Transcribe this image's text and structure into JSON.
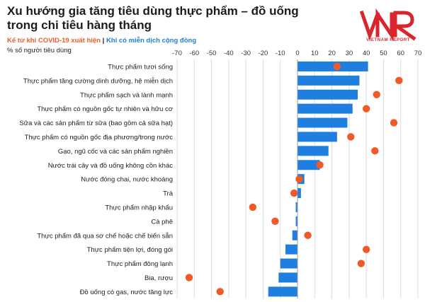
{
  "header": {
    "title": "Xu hướng gia tăng tiêu dùng thực phẩm – đồ uống trong chi tiêu hàng tháng",
    "subtitle_a": "Kể từ khi COVID-19 xuất hiện",
    "subtitle_sep": " | ",
    "subtitle_b": "Khi có miễn dịch cộng đồng",
    "unit_label": "% số người tiêu dùng",
    "logo_text": "VIETNAM REPORT"
  },
  "colors": {
    "bar": "#1f7fe0",
    "dot": "#f05a28",
    "grid": "#dcdcdc",
    "logo": "#d9262c"
  },
  "chart_data": {
    "type": "bar",
    "orientation": "horizontal",
    "xlim": [
      -70,
      70
    ],
    "xticks": [
      -70,
      -60,
      -50,
      -40,
      -30,
      -20,
      -10,
      0,
      10,
      20,
      30,
      40,
      50,
      60,
      70
    ],
    "grid": true,
    "categories": [
      "Thực phẩm tươi sống",
      "Thực phẩm tăng cường dinh dưỡng, hệ miễn dịch",
      "Thực phẩm sạch và lành mạnh",
      "Thực phẩm có nguồn gốc tự nhiên và hữu cơ",
      "Sữa và các sản phẩm từ sữa (bao gồm cả sữa hạt)",
      "Thực phẩm có nguồn gốc địa phương/trong nước",
      "Gạo, ngũ cốc và các sản phẩm nghiền",
      "Nước trái cây và đồ uống không cồn khác",
      "Nước đóng chai, nước khoáng",
      "Trà",
      "Thực phẩm nhập khẩu",
      "Cà phê",
      "Thực phẩm đã qua sơ chế hoặc chế biến sẵn",
      "Thực phẩm tiện lợi, đóng gói",
      "Thực phẩm đông lạnh",
      "Bia, rượu",
      "Đồ uống có gas, nước tăng lực"
    ],
    "series": [
      {
        "name": "Kể từ khi COVID-19 xuất hiện",
        "mark": "bar",
        "values": [
          41,
          36,
          35,
          32,
          29,
          23,
          18,
          13,
          4,
          2,
          -1,
          -1,
          -3,
          -7,
          -10,
          -11,
          -17
        ]
      },
      {
        "name": "Khi có miễn dịch cộng đồng",
        "mark": "dot",
        "values": [
          23,
          59,
          46,
          40,
          56,
          31,
          45,
          13,
          1,
          -2,
          -26,
          -13,
          6,
          40,
          37,
          -63,
          -45
        ]
      }
    ]
  }
}
